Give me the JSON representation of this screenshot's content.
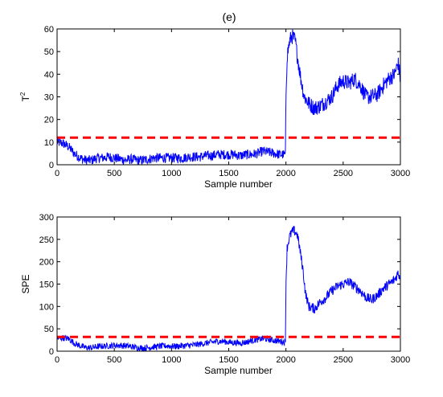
{
  "figure_title": "(e)",
  "chart_data": [
    {
      "type": "line",
      "xlabel": "Sample number",
      "ylabel": "T",
      "ylabel_sup": "2",
      "xlim": [
        0,
        3000
      ],
      "ylim": [
        0,
        60
      ],
      "xticks": [
        0,
        500,
        1000,
        1500,
        2000,
        2500,
        3000
      ],
      "yticks": [
        0,
        10,
        20,
        30,
        40,
        50,
        60
      ],
      "grid": false,
      "series": [
        {
          "color": "#0000ff",
          "style": "solid",
          "points": [
            [
              0,
              10
            ],
            [
              50,
              9.5
            ],
            [
              100,
              8
            ],
            [
              150,
              5
            ],
            [
              200,
              3
            ],
            [
              250,
              2
            ],
            [
              300,
              2
            ],
            [
              350,
              3
            ],
            [
              400,
              3
            ],
            [
              450,
              3.5
            ],
            [
              500,
              3
            ],
            [
              550,
              2.5
            ],
            [
              600,
              2
            ],
            [
              650,
              2.5
            ],
            [
              700,
              2
            ],
            [
              750,
              2
            ],
            [
              800,
              2.5
            ],
            [
              850,
              3
            ],
            [
              900,
              3
            ],
            [
              950,
              3
            ],
            [
              1000,
              3
            ],
            [
              1050,
              3
            ],
            [
              1100,
              3
            ],
            [
              1150,
              3.5
            ],
            [
              1200,
              3.5
            ],
            [
              1250,
              3.5
            ],
            [
              1300,
              4
            ],
            [
              1350,
              4
            ],
            [
              1400,
              4.5
            ],
            [
              1450,
              4.5
            ],
            [
              1500,
              4.5
            ],
            [
              1550,
              4.5
            ],
            [
              1600,
              4
            ],
            [
              1650,
              4.5
            ],
            [
              1700,
              4.5
            ],
            [
              1750,
              5
            ],
            [
              1800,
              6
            ],
            [
              1850,
              5.5
            ],
            [
              1900,
              5
            ],
            [
              1950,
              4.5
            ],
            [
              1995,
              4.5
            ],
            [
              2000,
              30
            ],
            [
              2010,
              48
            ],
            [
              2030,
              54
            ],
            [
              2050,
              57
            ],
            [
              2080,
              55
            ],
            [
              2100,
              48
            ],
            [
              2130,
              38
            ],
            [
              2160,
              30
            ],
            [
              2200,
              27
            ],
            [
              2250,
              25
            ],
            [
              2300,
              26
            ],
            [
              2350,
              28
            ],
            [
              2400,
              30
            ],
            [
              2450,
              35
            ],
            [
              2500,
              37
            ],
            [
              2550,
              36
            ],
            [
              2600,
              38
            ],
            [
              2650,
              35
            ],
            [
              2700,
              30
            ],
            [
              2750,
              30
            ],
            [
              2800,
              31
            ],
            [
              2850,
              35
            ],
            [
              2900,
              38
            ],
            [
              2950,
              40
            ],
            [
              2980,
              45
            ],
            [
              3000,
              38
            ]
          ],
          "noise": 2.2
        },
        {
          "color": "#ff0000",
          "style": "dashed",
          "points": [
            [
              0,
              12
            ],
            [
              3000,
              12
            ]
          ],
          "noise": 0
        }
      ]
    },
    {
      "type": "line",
      "xlabel": "Sample number",
      "ylabel": "SPE",
      "ylabel_sup": "",
      "xlim": [
        0,
        3000
      ],
      "ylim": [
        0,
        300
      ],
      "xticks": [
        0,
        500,
        1000,
        1500,
        2000,
        2500,
        3000
      ],
      "yticks": [
        0,
        50,
        100,
        150,
        200,
        250,
        300
      ],
      "grid": false,
      "series": [
        {
          "color": "#0000ff",
          "style": "solid",
          "points": [
            [
              0,
              28
            ],
            [
              50,
              30
            ],
            [
              100,
              28
            ],
            [
              150,
              18
            ],
            [
              200,
              12
            ],
            [
              250,
              8
            ],
            [
              300,
              8
            ],
            [
              350,
              10
            ],
            [
              400,
              11
            ],
            [
              450,
              12
            ],
            [
              500,
              13
            ],
            [
              550,
              13
            ],
            [
              600,
              12
            ],
            [
              650,
              10
            ],
            [
              700,
              8
            ],
            [
              750,
              7
            ],
            [
              800,
              8
            ],
            [
              850,
              10
            ],
            [
              900,
              11
            ],
            [
              950,
              12
            ],
            [
              1000,
              11
            ],
            [
              1050,
              11
            ],
            [
              1100,
              12
            ],
            [
              1150,
              13
            ],
            [
              1200,
              14
            ],
            [
              1250,
              16
            ],
            [
              1300,
              18
            ],
            [
              1350,
              20
            ],
            [
              1400,
              22
            ],
            [
              1450,
              22
            ],
            [
              1500,
              20
            ],
            [
              1550,
              19
            ],
            [
              1600,
              18
            ],
            [
              1650,
              20
            ],
            [
              1700,
              24
            ],
            [
              1750,
              26
            ],
            [
              1800,
              28
            ],
            [
              1850,
              26
            ],
            [
              1900,
              24
            ],
            [
              1950,
              22
            ],
            [
              1995,
              20
            ],
            [
              2000,
              150
            ],
            [
              2010,
              230
            ],
            [
              2030,
              255
            ],
            [
              2050,
              265
            ],
            [
              2070,
              270
            ],
            [
              2100,
              260
            ],
            [
              2120,
              230
            ],
            [
              2150,
              180
            ],
            [
              2170,
              130
            ],
            [
              2200,
              100
            ],
            [
              2250,
              95
            ],
            [
              2300,
              110
            ],
            [
              2350,
              120
            ],
            [
              2400,
              135
            ],
            [
              2450,
              145
            ],
            [
              2500,
              150
            ],
            [
              2550,
              155
            ],
            [
              2600,
              145
            ],
            [
              2650,
              135
            ],
            [
              2700,
              120
            ],
            [
              2750,
              115
            ],
            [
              2800,
              125
            ],
            [
              2850,
              140
            ],
            [
              2900,
              150
            ],
            [
              2950,
              160
            ],
            [
              2980,
              175
            ],
            [
              3000,
              165
            ]
          ],
          "noise": 7
        },
        {
          "color": "#ff0000",
          "style": "dashed",
          "points": [
            [
              0,
              32
            ],
            [
              3000,
              32
            ]
          ],
          "noise": 0
        }
      ]
    }
  ]
}
